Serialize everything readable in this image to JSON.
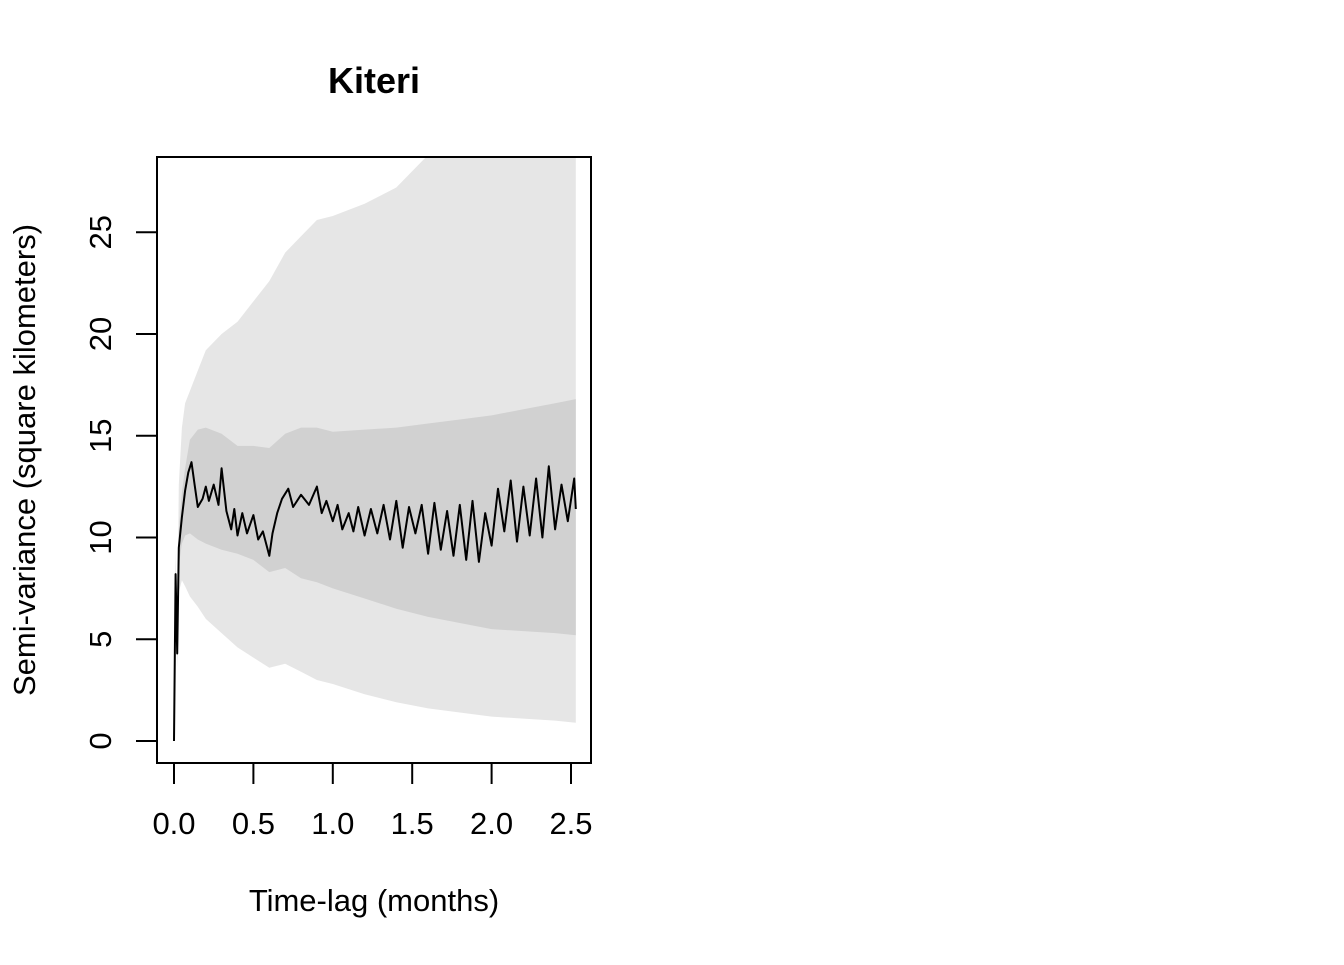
{
  "chart_data": {
    "type": "line",
    "title": "Kiteri",
    "xlabel": "Time-lag (months)",
    "ylabel": "Semi-variance (square kilometers)",
    "xlim": [
      -0.1,
      2.6
    ],
    "ylim": [
      -1,
      28.8
    ],
    "xticks": [
      {
        "value": 0.0,
        "label": "0.0"
      },
      {
        "value": 0.5,
        "label": "0.5"
      },
      {
        "value": 1.0,
        "label": "1.0"
      },
      {
        "value": 1.5,
        "label": "1.5"
      },
      {
        "value": 2.0,
        "label": "2.0"
      },
      {
        "value": 2.5,
        "label": "2.5"
      }
    ],
    "yticks": [
      {
        "value": 0,
        "label": "0"
      },
      {
        "value": 5,
        "label": "5"
      },
      {
        "value": 10,
        "label": "10"
      },
      {
        "value": 15,
        "label": "15"
      },
      {
        "value": 20,
        "label": "20"
      },
      {
        "value": 25,
        "label": "25"
      }
    ],
    "grid": false,
    "legend": "none",
    "series": [
      {
        "role": "semi-variance",
        "color": "#000000",
        "x": [
          0,
          0.01,
          0.02,
          0.03,
          0.05,
          0.07,
          0.09,
          0.11,
          0.13,
          0.15,
          0.18,
          0.2,
          0.22,
          0.25,
          0.28,
          0.3,
          0.33,
          0.36,
          0.38,
          0.4,
          0.43,
          0.46,
          0.5,
          0.53,
          0.56,
          0.6,
          0.62,
          0.65,
          0.68,
          0.72,
          0.75,
          0.8,
          0.85,
          0.9,
          0.93,
          0.96,
          1.0,
          1.03,
          1.06,
          1.1,
          1.13,
          1.16,
          1.2,
          1.24,
          1.28,
          1.32,
          1.36,
          1.4,
          1.44,
          1.48,
          1.52,
          1.56,
          1.6,
          1.64,
          1.68,
          1.72,
          1.76,
          1.8,
          1.84,
          1.88,
          1.92,
          1.96,
          2.0,
          2.04,
          2.08,
          2.12,
          2.16,
          2.2,
          2.24,
          2.28,
          2.32,
          2.36,
          2.4,
          2.44,
          2.48,
          2.52,
          2.53
        ],
        "y": [
          0,
          8.2,
          4.3,
          9.5,
          11,
          12.3,
          13.2,
          13.7,
          12.6,
          11.5,
          11.9,
          12.5,
          11.8,
          12.6,
          11.6,
          13.4,
          11.3,
          10.4,
          11.4,
          10.1,
          11.2,
          10.2,
          11.1,
          9.9,
          10.3,
          9.1,
          10.2,
          11.2,
          11.9,
          12.4,
          11.5,
          12.1,
          11.6,
          12.5,
          11.2,
          11.8,
          10.8,
          11.6,
          10.4,
          11.2,
          10.3,
          11.5,
          10.1,
          11.4,
          10.2,
          11.6,
          9.9,
          11.8,
          9.5,
          11.5,
          10.2,
          11.6,
          9.2,
          11.7,
          9.4,
          11.3,
          9.1,
          11.6,
          8.9,
          11.8,
          8.8,
          11.2,
          9.6,
          12.4,
          10.3,
          12.8,
          9.8,
          12.5,
          10.1,
          12.9,
          10,
          13.5,
          10.4,
          12.6,
          10.8,
          12.9,
          11.4
        ]
      },
      {
        "role": "inner-band",
        "color": "#d1d1d1",
        "x": [
          0,
          0.01,
          0.02,
          0.03,
          0.05,
          0.07,
          0.1,
          0.15,
          0.2,
          0.3,
          0.4,
          0.5,
          0.6,
          0.7,
          0.8,
          0.9,
          1.0,
          1.2,
          1.4,
          1.6,
          1.8,
          2.0,
          2.2,
          2.4,
          2.53
        ],
        "lower": [
          0,
          7.6,
          4.0,
          8.6,
          9.7,
          10.1,
          10.2,
          9.9,
          9.7,
          9.4,
          9.2,
          8.9,
          8.3,
          8.5,
          8.0,
          7.8,
          7.5,
          7.0,
          6.5,
          6.1,
          5.8,
          5.5,
          5.4,
          5.3,
          5.2
        ],
        "upper": [
          0,
          8.8,
          4.6,
          10.4,
          12.2,
          13.4,
          14.8,
          15.3,
          15.4,
          15.1,
          14.5,
          14.5,
          14.4,
          15.1,
          15.4,
          15.4,
          15.2,
          15.3,
          15.4,
          15.6,
          15.8,
          16.0,
          16.3,
          16.6,
          16.8
        ]
      },
      {
        "role": "outer-band",
        "color": "#e6e6e6",
        "x": [
          0,
          0.01,
          0.02,
          0.03,
          0.05,
          0.07,
          0.1,
          0.15,
          0.2,
          0.3,
          0.4,
          0.5,
          0.6,
          0.7,
          0.8,
          0.9,
          1.0,
          1.2,
          1.4,
          1.6,
          1.8,
          2.0,
          2.2,
          2.4,
          2.53
        ],
        "lower": [
          0,
          7.0,
          3.6,
          7.3,
          7.9,
          7.6,
          7.1,
          6.6,
          6.0,
          5.3,
          4.6,
          4.1,
          3.6,
          3.8,
          3.4,
          3.0,
          2.8,
          2.3,
          1.9,
          1.6,
          1.4,
          1.2,
          1.1,
          1.0,
          0.9
        ],
        "upper": [
          0,
          9.4,
          5.0,
          12.6,
          15.4,
          16.6,
          17.2,
          18.2,
          19.2,
          20.0,
          20.6,
          21.6,
          22.6,
          24.0,
          24.8,
          25.6,
          25.8,
          26.4,
          27.2,
          28.8,
          28.8,
          28.8,
          28.8,
          28.8,
          28.8
        ]
      }
    ]
  }
}
